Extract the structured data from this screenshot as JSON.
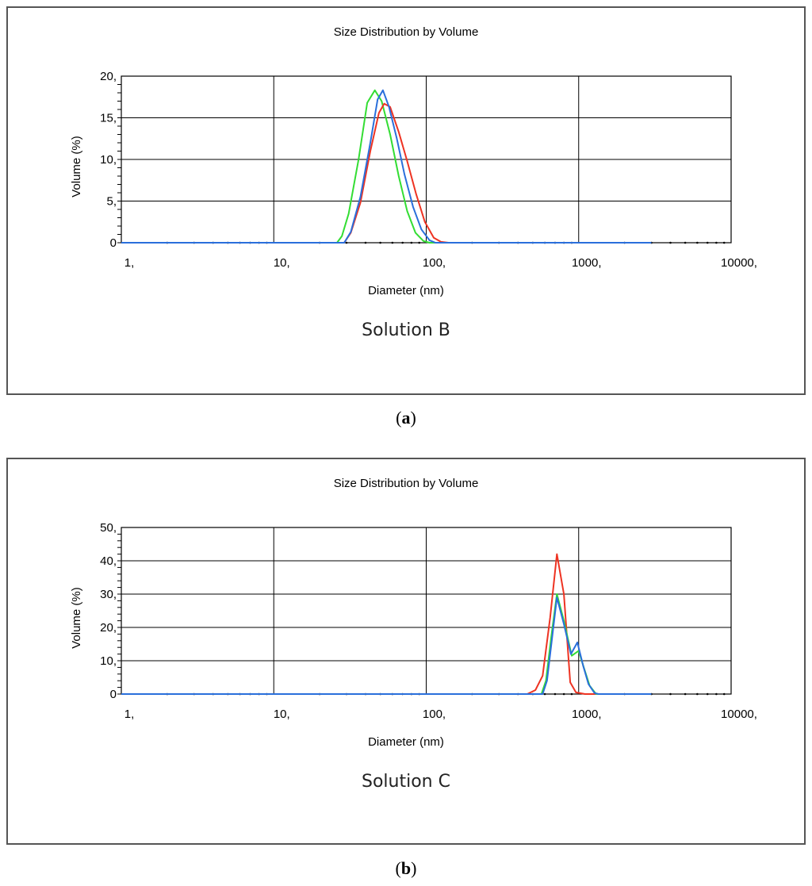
{
  "chart_data": [
    {
      "type": "line",
      "title": "Size Distribution by Volume",
      "xlabel": "Diameter (nm)",
      "ylabel": "Volume (%)",
      "caption": "Solution B",
      "panel_label": "a",
      "x_scale": "log",
      "xlim": [
        1,
        10000
      ],
      "ylim": [
        0,
        20
      ],
      "x_ticks": [
        1,
        10,
        100,
        1000,
        10000
      ],
      "x_tick_labels": [
        "1,",
        "10,",
        "100,",
        "1000,",
        "10000,"
      ],
      "y_ticks": [
        0,
        5,
        10,
        15,
        20
      ],
      "y_tick_labels": [
        "0",
        "5,",
        "10,",
        "15,",
        "20,"
      ],
      "grid": true,
      "series": [
        {
          "color": "#33dd33",
          "points": [
            [
              1,
              0
            ],
            [
              26,
              0
            ],
            [
              28,
              0.8
            ],
            [
              31,
              3.5
            ],
            [
              36,
              10
            ],
            [
              41,
              16.8
            ],
            [
              46,
              18.3
            ],
            [
              51,
              17
            ],
            [
              58,
              13
            ],
            [
              66,
              8
            ],
            [
              75,
              3.8
            ],
            [
              85,
              1.2
            ],
            [
              96,
              0.2
            ],
            [
              105,
              0
            ],
            [
              3000,
              0
            ]
          ]
        },
        {
          "color": "#ee3322",
          "points": [
            [
              1,
              0
            ],
            [
              29,
              0
            ],
            [
              32,
              1.2
            ],
            [
              37,
              4.8
            ],
            [
              43,
              11
            ],
            [
              49,
              15.6
            ],
            [
              53,
              16.7
            ],
            [
              58,
              16.3
            ],
            [
              66,
              13.3
            ],
            [
              75,
              9.8
            ],
            [
              86,
              5.8
            ],
            [
              98,
              2.5
            ],
            [
              112,
              0.6
            ],
            [
              125,
              0.1
            ],
            [
              140,
              0
            ],
            [
              3000,
              0
            ]
          ]
        },
        {
          "color": "#2a6fdb",
          "points": [
            [
              1,
              0
            ],
            [
              29,
              0
            ],
            [
              32,
              1.3
            ],
            [
              37,
              5.5
            ],
            [
              43,
              12
            ],
            [
              48,
              17.2
            ],
            [
              52,
              18.3
            ],
            [
              57,
              16.3
            ],
            [
              64,
              12.6
            ],
            [
              72,
              8.2
            ],
            [
              82,
              4.3
            ],
            [
              93,
              1.6
            ],
            [
              105,
              0.3
            ],
            [
              115,
              0
            ],
            [
              3000,
              0
            ]
          ]
        }
      ]
    },
    {
      "type": "line",
      "title": "Size Distribution by Volume",
      "xlabel": "Diameter (nm)",
      "ylabel": "Volume (%)",
      "caption": "Solution C",
      "panel_label": "b",
      "x_scale": "log",
      "xlim": [
        1,
        10000
      ],
      "ylim": [
        0,
        50
      ],
      "x_ticks": [
        1,
        10,
        100,
        1000,
        10000
      ],
      "x_tick_labels": [
        "1,",
        "10,",
        "100,",
        "1000,",
        "10000,"
      ],
      "y_ticks": [
        0,
        10,
        20,
        30,
        40,
        50
      ],
      "y_tick_labels": [
        "0",
        "10,",
        "20,",
        "30,",
        "40,",
        "50,"
      ],
      "grid": true,
      "series": [
        {
          "color": "#ee3322",
          "points": [
            [
              1,
              0
            ],
            [
              460,
              0
            ],
            [
              520,
              1.2
            ],
            [
              580,
              5.5
            ],
            [
              650,
              23
            ],
            [
              720,
              42
            ],
            [
              800,
              30
            ],
            [
              880,
              3.5
            ],
            [
              960,
              0.5
            ],
            [
              1100,
              0
            ],
            [
              3000,
              0
            ]
          ]
        },
        {
          "color": "#33dd33",
          "points": [
            [
              1,
              0
            ],
            [
              570,
              0
            ],
            [
              610,
              4
            ],
            [
              660,
              17
            ],
            [
              720,
              30
            ],
            [
              800,
              22
            ],
            [
              900,
              11.5
            ],
            [
              1000,
              13
            ],
            [
              1080,
              8
            ],
            [
              1180,
              2.5
            ],
            [
              1300,
              0
            ],
            [
              3000,
              0
            ]
          ]
        },
        {
          "color": "#2a6fdb",
          "points": [
            [
              1,
              0
            ],
            [
              580,
              0
            ],
            [
              620,
              4
            ],
            [
              670,
              17
            ],
            [
              720,
              29
            ],
            [
              800,
              21
            ],
            [
              890,
              12
            ],
            [
              980,
              15.5
            ],
            [
              1070,
              8.5
            ],
            [
              1160,
              3
            ],
            [
              1270,
              0.3
            ],
            [
              1350,
              0
            ],
            [
              3000,
              0
            ]
          ]
        }
      ]
    }
  ]
}
